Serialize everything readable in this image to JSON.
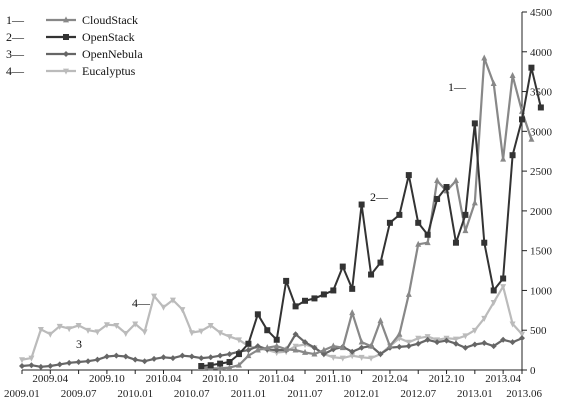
{
  "chart_data": {
    "type": "line",
    "title": "",
    "xlabel": "",
    "ylabel": "",
    "ylim": [
      0,
      4500
    ],
    "y_ticks": [
      "0",
      "500",
      "1000",
      "1500",
      "2000",
      "2500",
      "3000",
      "3500",
      "4000",
      "4500"
    ],
    "x_ticks_upper": [
      "2009.04",
      "2009.10",
      "2010.04",
      "2010.10",
      "2011.04",
      "2011.10",
      "2012.04",
      "2012.10",
      "2013.04"
    ],
    "x_ticks_lower": [
      "2009.01",
      "2009.07",
      "2010.01",
      "2010.07",
      "2011.01",
      "2011.07",
      "2012.01",
      "2012.07",
      "2013.01",
      "2013.06"
    ],
    "x_range_months": [
      "2009.01",
      "2013.06"
    ],
    "y_axis_position": "right",
    "grid": false,
    "legend_position": "top-left",
    "series": [
      {
        "name": "CloudStack",
        "legend_label": "1— CloudStack",
        "color": "#888888",
        "marker": "triangle",
        "start": "2010.08",
        "values": [
          30,
          20,
          20,
          30,
          60,
          180,
          250,
          280,
          300,
          260,
          250,
          220,
          200,
          250,
          300,
          280,
          720,
          350,
          300,
          620,
          300,
          450,
          950,
          1580,
          1600,
          2380,
          2250,
          2380,
          1750,
          2100,
          3920,
          3600,
          2650,
          3700,
          3250,
          2900
        ]
      },
      {
        "name": "OpenStack",
        "legend_label": "2— OpenStack",
        "color": "#333333",
        "marker": "square",
        "start": "2010.08",
        "values": [
          50,
          60,
          80,
          100,
          200,
          330,
          700,
          500,
          380,
          1120,
          800,
          870,
          900,
          950,
          1000,
          1300,
          1020,
          2080,
          1200,
          1350,
          1850,
          1950,
          2450,
          1850,
          1700,
          2150,
          2300,
          1600,
          1950,
          3100,
          1600,
          1000,
          1150,
          2700,
          3150,
          3800,
          3300
        ]
      },
      {
        "name": "OpenNebula",
        "legend_label": "3— OpenNebula",
        "color": "#666666",
        "marker": "diamond",
        "start": "2009.01",
        "values": [
          50,
          60,
          40,
          50,
          70,
          90,
          100,
          110,
          130,
          170,
          180,
          170,
          130,
          110,
          140,
          160,
          150,
          180,
          170,
          150,
          160,
          180,
          200,
          230,
          250,
          300,
          260,
          250,
          250,
          450,
          350,
          280,
          200,
          260,
          290,
          230,
          280,
          300,
          200,
          280,
          290,
          300,
          330,
          380,
          350,
          370,
          330,
          280,
          320,
          340,
          300,
          380,
          350,
          400
        ]
      },
      {
        "name": "Eucalyptus",
        "legend_label": "4— Eucalyptus",
        "color": "#bbbbbb",
        "marker": "inverted-triangle",
        "start": "2009.01",
        "values": [
          130,
          150,
          510,
          450,
          550,
          520,
          560,
          500,
          480,
          570,
          560,
          460,
          580,
          480,
          930,
          790,
          880,
          760,
          470,
          490,
          560,
          470,
          420,
          380,
          300,
          270,
          250,
          220,
          230,
          300,
          320,
          280,
          200,
          160,
          150,
          180,
          160,
          150,
          200,
          300,
          400,
          350,
          400,
          420,
          380,
          400,
          390,
          430,
          500,
          650,
          850,
          1050,
          580,
          450
        ]
      }
    ],
    "annotations": [
      {
        "text": "1—",
        "series": "CloudStack"
      },
      {
        "text": "2—",
        "series": "OpenStack"
      },
      {
        "text": "3",
        "series": "OpenNebula"
      },
      {
        "text": "4—",
        "series": "Eucalyptus"
      }
    ]
  }
}
